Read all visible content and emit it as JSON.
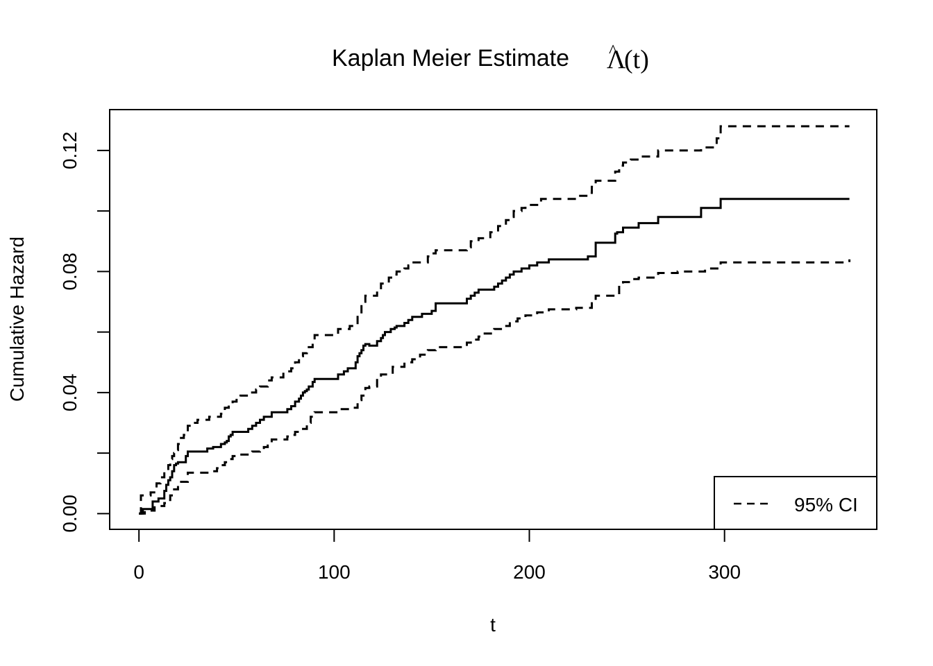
{
  "chart_data": {
    "type": "line",
    "title": {
      "prefix": "Kaplan Meier Estimate ",
      "math": "Λ",
      "hat": "^",
      "suffix": "(t)"
    },
    "xlabel": "t",
    "ylabel": "Cumulative Hazard",
    "xlim": [
      -15,
      378
    ],
    "ylim": [
      -0.0052,
      0.1335
    ],
    "x_ticks": [
      0,
      100,
      200,
      300
    ],
    "x_tick_labels": [
      "0",
      "100",
      "200",
      "300"
    ],
    "y_ticks": [
      0,
      0.02,
      0.04,
      0.06,
      0.08,
      0.1,
      0.12
    ],
    "y_tick_labels": [
      "0.00",
      "",
      "0.04",
      "",
      "0.08",
      "",
      "0.12"
    ],
    "step": true,
    "grid": false,
    "legend": {
      "position": "bottom-right",
      "entries": [
        {
          "label": "95% CI",
          "style": "dashed"
        }
      ]
    },
    "series": [
      {
        "key": "estimate",
        "style": "solid",
        "x": [
          0,
          2,
          7,
          10,
          12,
          13,
          14,
          15,
          16,
          17,
          18,
          19,
          20,
          24,
          25,
          35,
          38,
          40,
          42,
          44,
          45,
          46,
          47,
          48,
          50,
          56,
          58,
          60,
          62,
          64,
          66,
          68,
          76,
          78,
          80,
          82,
          83,
          84,
          85,
          86,
          87,
          89,
          90,
          102,
          105,
          107,
          111,
          112,
          113,
          114,
          115,
          116,
          118,
          122,
          124,
          125,
          126,
          129,
          131,
          132,
          136,
          138,
          140,
          145,
          150,
          152,
          168,
          170,
          172,
          174,
          182,
          184,
          186,
          188,
          190,
          192,
          196,
          200,
          204,
          210,
          224,
          230,
          234,
          236,
          244,
          245,
          248,
          256,
          266,
          288,
          298,
          364
        ],
        "y": [
          0,
          0.0015,
          0.004,
          0.005,
          0.005,
          0.0075,
          0.0095,
          0.011,
          0.012,
          0.014,
          0.016,
          0.0165,
          0.017,
          0.019,
          0.0205,
          0.0215,
          0.022,
          0.022,
          0.023,
          0.0235,
          0.024,
          0.0255,
          0.026,
          0.027,
          0.027,
          0.028,
          0.029,
          0.03,
          0.031,
          0.032,
          0.032,
          0.0335,
          0.0345,
          0.0355,
          0.037,
          0.038,
          0.039,
          0.04,
          0.0405,
          0.041,
          0.042,
          0.0435,
          0.0445,
          0.046,
          0.047,
          0.048,
          0.05,
          0.052,
          0.053,
          0.054,
          0.0555,
          0.056,
          0.0555,
          0.057,
          0.058,
          0.059,
          0.06,
          0.061,
          0.0615,
          0.062,
          0.063,
          0.064,
          0.065,
          0.066,
          0.067,
          0.0695,
          0.071,
          0.072,
          0.073,
          0.074,
          0.075,
          0.076,
          0.077,
          0.078,
          0.079,
          0.08,
          0.081,
          0.082,
          0.083,
          0.084,
          0.084,
          0.085,
          0.0895,
          0.0895,
          0.0925,
          0.093,
          0.0945,
          0.096,
          0.098,
          0.101,
          0.104,
          0.104
        ]
      },
      {
        "key": "upper",
        "style": "dashed",
        "x": [
          0,
          1,
          6,
          9,
          11,
          13,
          15,
          16,
          17,
          18,
          19,
          20,
          21,
          23,
          24,
          25,
          28,
          30,
          36,
          40,
          42,
          44,
          46,
          48,
          50,
          52,
          56,
          60,
          62,
          66,
          68,
          74,
          78,
          80,
          82,
          84,
          86,
          89,
          90,
          102,
          108,
          112,
          114,
          116,
          118,
          122,
          124,
          128,
          130,
          132,
          136,
          138,
          140,
          148,
          150,
          152,
          168,
          170,
          174,
          180,
          184,
          188,
          190,
          192,
          196,
          198,
          204,
          206,
          224,
          230,
          232,
          234,
          244,
          246,
          248,
          252,
          256,
          266,
          288,
          296,
          298,
          364
        ],
        "y": [
          0,
          0.006,
          0.007,
          0.01,
          0.012,
          0.014,
          0.016,
          0.018,
          0.019,
          0.02,
          0.021,
          0.023,
          0.025,
          0.026,
          0.027,
          0.029,
          0.03,
          0.031,
          0.032,
          0.032,
          0.033,
          0.035,
          0.036,
          0.037,
          0.038,
          0.039,
          0.04,
          0.041,
          0.042,
          0.044,
          0.045,
          0.047,
          0.048,
          0.05,
          0.052,
          0.053,
          0.055,
          0.057,
          0.059,
          0.061,
          0.062,
          0.066,
          0.07,
          0.072,
          0.072,
          0.074,
          0.076,
          0.078,
          0.079,
          0.08,
          0.081,
          0.082,
          0.083,
          0.085,
          0.086,
          0.087,
          0.088,
          0.09,
          0.091,
          0.093,
          0.095,
          0.097,
          0.098,
          0.1,
          0.101,
          0.102,
          0.103,
          0.104,
          0.105,
          0.106,
          0.108,
          0.11,
          0.113,
          0.115,
          0.116,
          0.117,
          0.118,
          0.12,
          0.121,
          0.124,
          0.128,
          0.128
        ]
      },
      {
        "key": "lower",
        "style": "dashed",
        "x": [
          0,
          3,
          8,
          13,
          14,
          16,
          18,
          20,
          25,
          36,
          40,
          42,
          44,
          46,
          48,
          50,
          58,
          62,
          64,
          66,
          68,
          76,
          78,
          80,
          82,
          86,
          88,
          90,
          102,
          108,
          112,
          114,
          116,
          118,
          122,
          124,
          130,
          136,
          140,
          144,
          148,
          152,
          168,
          170,
          174,
          176,
          182,
          186,
          190,
          194,
          198,
          204,
          210,
          224,
          232,
          234,
          246,
          248,
          252,
          256,
          266,
          276,
          290,
          298,
          364
        ],
        "y": [
          0,
          0.001,
          0.0025,
          0.0035,
          0.0045,
          0.006,
          0.008,
          0.0105,
          0.0135,
          0.014,
          0.015,
          0.016,
          0.017,
          0.018,
          0.019,
          0.0195,
          0.0205,
          0.021,
          0.022,
          0.0225,
          0.0245,
          0.0255,
          0.026,
          0.027,
          0.028,
          0.03,
          0.032,
          0.0335,
          0.0345,
          0.035,
          0.0375,
          0.039,
          0.0415,
          0.042,
          0.0445,
          0.046,
          0.0485,
          0.05,
          0.051,
          0.0525,
          0.054,
          0.055,
          0.0565,
          0.0575,
          0.0585,
          0.0595,
          0.061,
          0.062,
          0.0635,
          0.0645,
          0.0655,
          0.0665,
          0.0675,
          0.068,
          0.07,
          0.072,
          0.0755,
          0.0765,
          0.0775,
          0.078,
          0.0795,
          0.08,
          0.081,
          0.083,
          0.084
        ]
      }
    ]
  }
}
